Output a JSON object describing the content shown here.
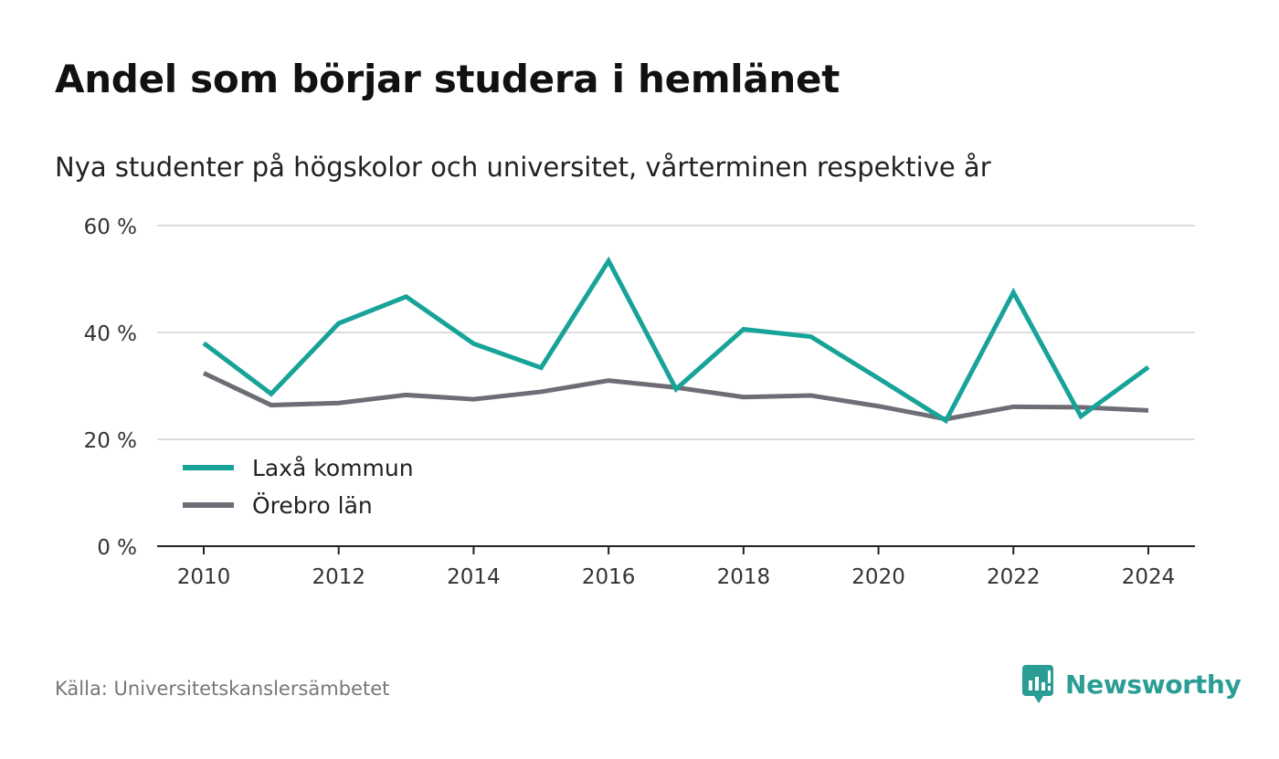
{
  "title": "Andel som börjar studera i hemlänet",
  "subtitle": "Nya studenter på högskolor och universitet, vårterminen respektive år",
  "source": "Källa: Universitetskanslersämbetet",
  "brand": {
    "name": "Newsworthy",
    "icon": "newsworthy-logo-icon",
    "color": "#2a9d95"
  },
  "chart_data": {
    "type": "line",
    "x": [
      2010,
      2011,
      2012,
      2013,
      2014,
      2015,
      2016,
      2017,
      2018,
      2019,
      2020,
      2021,
      2022,
      2023,
      2024
    ],
    "x_ticks": [
      2010,
      2012,
      2014,
      2016,
      2018,
      2020,
      2022,
      2024
    ],
    "x_tick_labels": [
      "2010",
      "2012",
      "2014",
      "2016",
      "2018",
      "2020",
      "2022",
      "2024"
    ],
    "y_ticks": [
      0,
      20,
      40,
      60
    ],
    "y_tick_labels": [
      "0 %",
      "20 %",
      "40 %",
      "60 %"
    ],
    "ylim": [
      0,
      60
    ],
    "grid": true,
    "legend_position": "bottom-left",
    "series": [
      {
        "name": "Laxå kommun",
        "color": "#17a398",
        "values": [
          38.0,
          28.5,
          41.7,
          46.7,
          37.9,
          33.4,
          53.4,
          29.4,
          40.6,
          39.2,
          31.4,
          23.5,
          47.5,
          24.3,
          33.5
        ]
      },
      {
        "name": "Örebro län",
        "color": "#6e6d75",
        "values": [
          32.4,
          26.4,
          26.8,
          28.3,
          27.5,
          28.9,
          31.0,
          29.7,
          27.9,
          28.2,
          26.2,
          23.8,
          26.1,
          26.0,
          25.4
        ]
      }
    ]
  }
}
